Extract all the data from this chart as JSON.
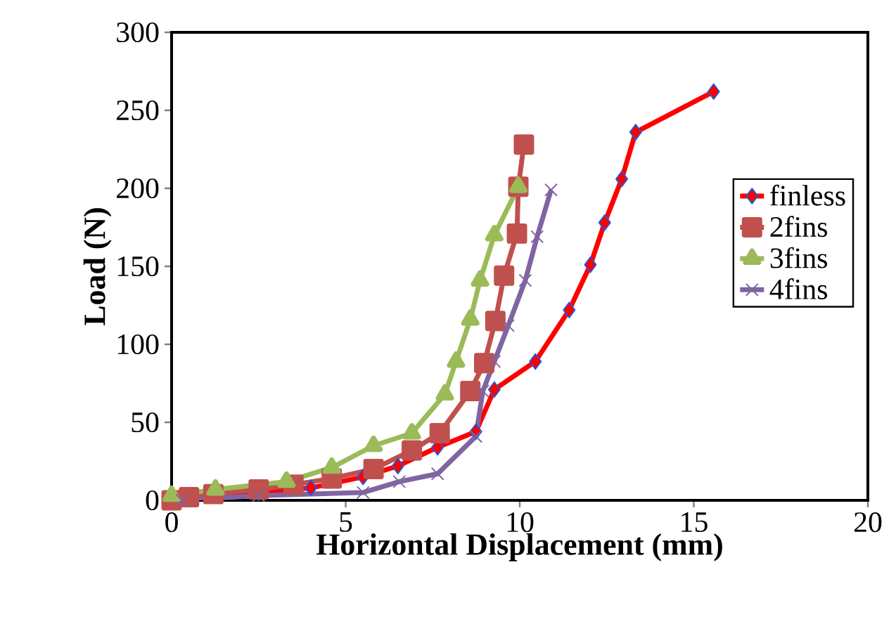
{
  "chart_data": {
    "type": "line",
    "xlabel": "Horizontal Displacement (mm)",
    "ylabel": "Load (N)",
    "xlim": [
      0,
      20
    ],
    "ylim": [
      0,
      300
    ],
    "xticks": [
      0,
      5,
      10,
      15,
      20
    ],
    "yticks": [
      0,
      50,
      100,
      150,
      200,
      250,
      300
    ],
    "grid": false,
    "legend": "right",
    "series": [
      {
        "name": "finless",
        "color": "#ff0000",
        "marker": "diamond",
        "x": [
          0,
          1,
          2.5,
          4,
          5.5,
          6.5,
          7.64,
          8.74,
          9.27,
          10.45,
          11.42,
          12.03,
          12.44,
          12.93,
          13.33,
          15.57
        ],
        "values": [
          0,
          null,
          5,
          8,
          15,
          22,
          34,
          44,
          71,
          89,
          122,
          151,
          178,
          206,
          236,
          262
        ]
      },
      {
        "name": "2fins",
        "color": "#c0504d",
        "marker": "square",
        "x": [
          0,
          0.5,
          1.2,
          2.5,
          3.5,
          4.6,
          5.8,
          6.9,
          7.7,
          8.58,
          8.98,
          9.3,
          9.55,
          9.92,
          9.96,
          10.12
        ],
        "values": [
          0,
          2,
          4,
          7,
          10,
          14,
          20,
          32,
          43,
          70,
          88,
          115,
          144,
          171,
          201,
          228
        ]
      },
      {
        "name": "3fins",
        "color": "#9bbb59",
        "marker": "triangle",
        "x": [
          0,
          1.26,
          3.3,
          4.6,
          5.8,
          6.9,
          7.85,
          8.17,
          8.58,
          8.86,
          9.27,
          9.96
        ],
        "values": [
          3,
          7,
          12,
          21,
          35,
          43,
          68,
          89,
          116,
          141,
          170,
          201
        ]
      },
      {
        "name": "4fins",
        "color": "#8064a2",
        "marker": "cross",
        "x": [
          0.3,
          2.5,
          5.5,
          6.54,
          7.64,
          8.25,
          8.74,
          8.94,
          9.27,
          9.67,
          10.16,
          10.5,
          10.9
        ],
        "values": [
          0,
          3,
          5,
          12,
          17,
          null,
          41,
          70,
          89,
          112,
          141,
          169,
          199
        ]
      }
    ]
  }
}
